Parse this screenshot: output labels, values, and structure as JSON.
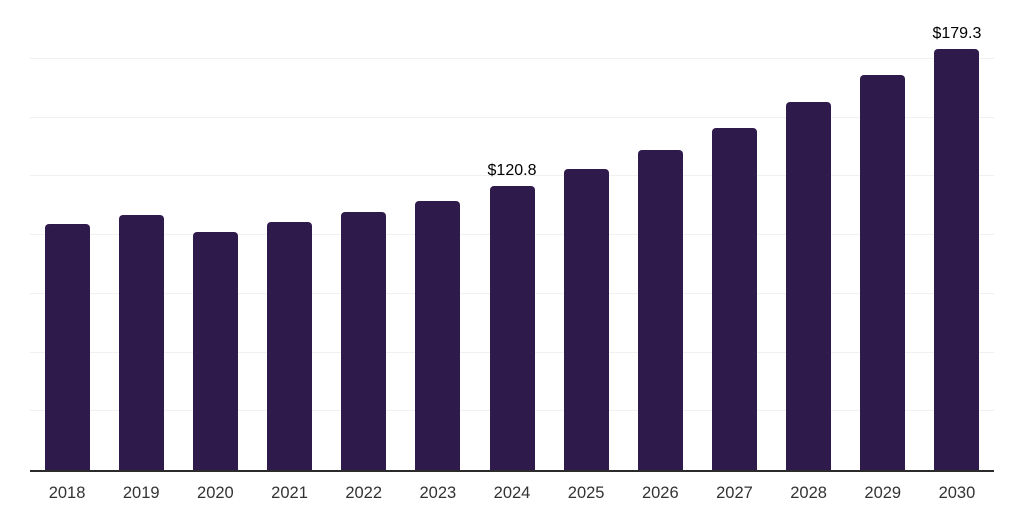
{
  "chart_data": {
    "type": "bar",
    "title": "",
    "xlabel": "",
    "ylabel": "",
    "categories": [
      "2018",
      "2019",
      "2020",
      "2021",
      "2022",
      "2023",
      "2024",
      "2025",
      "2026",
      "2027",
      "2028",
      "2029",
      "2030"
    ],
    "values": [
      104.8,
      108.6,
      101.4,
      105.5,
      109.6,
      114.6,
      120.8,
      128.2,
      136.2,
      145.4,
      156.4,
      168.0,
      179.3
    ],
    "data_labels": {
      "2024": "$120.8",
      "2030": "$179.3"
    },
    "ylim": [
      0,
      200
    ],
    "gridline_step": 25,
    "grid": "horizontal-only",
    "legend": "none",
    "colors": {
      "bar": "#2f1a4c",
      "axis_line": "#2b2b2b",
      "gridline": "#f1f1f1",
      "data_label": "#000000",
      "tick_label": "#333333",
      "background": "#ffffff"
    }
  }
}
